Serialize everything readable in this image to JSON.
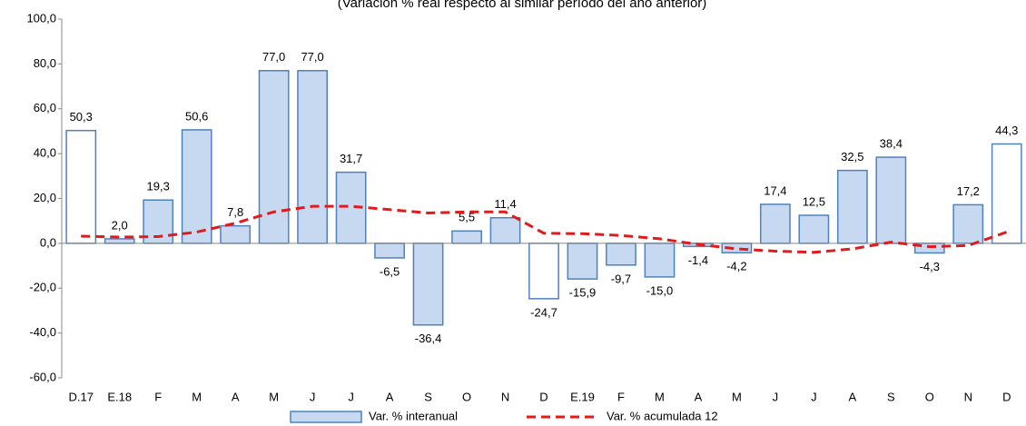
{
  "chart_data": {
    "type": "bar",
    "title": "(Variación % real respecto al similar período del año anterior)",
    "categories": [
      "D.17",
      "E.18",
      "F",
      "M",
      "A",
      "M",
      "J",
      "J",
      "A",
      "S",
      "O",
      "N",
      "D",
      "E.19",
      "F",
      "M",
      "A",
      "M",
      "J",
      "J",
      "A",
      "S",
      "O",
      "N",
      "D"
    ],
    "series": [
      {
        "name": "Var. % interanual",
        "color": "#c6d9f1",
        "border": "#4f81bd",
        "colors": [
          "#ffffff",
          "#c6d9f1",
          "#c6d9f1",
          "#c6d9f1",
          "#c6d9f1",
          "#c6d9f1",
          "#c6d9f1",
          "#c6d9f1",
          "#c6d9f1",
          "#c6d9f1",
          "#c6d9f1",
          "#c6d9f1",
          "#ffffff",
          "#c6d9f1",
          "#c6d9f1",
          "#c6d9f1",
          "#c6d9f1",
          "#c6d9f1",
          "#c6d9f1",
          "#c6d9f1",
          "#c6d9f1",
          "#c6d9f1",
          "#c6d9f1",
          "#c6d9f1",
          "#ffffff"
        ],
        "values": [
          50.3,
          2.0,
          19.3,
          50.6,
          7.8,
          77.0,
          77.0,
          31.7,
          -6.5,
          -36.4,
          5.5,
          11.4,
          -24.7,
          -15.9,
          -9.7,
          -15.0,
          -1.4,
          -4.2,
          17.4,
          12.5,
          32.5,
          38.4,
          -4.3,
          17.2,
          44.3
        ],
        "value_labels": [
          "50,3",
          "2,0",
          "19,3",
          "50,6",
          "7,8",
          "77,0",
          "77,0",
          "31,7",
          "-6,5",
          "-36,4",
          "5,5",
          "11,4",
          "-24,7",
          "-15,9",
          "-9,7",
          "-15,0",
          "-1,4",
          "-4,2",
          "17,4",
          "12,5",
          "32,5",
          "38,4",
          "-4,3",
          "17,2",
          "44,3"
        ]
      },
      {
        "name": "Var. % acumulada 12",
        "type": "line",
        "color": "#e31a1c",
        "dashed": true,
        "values": [
          3.2,
          2.8,
          3.0,
          5,
          9,
          14,
          16.5,
          16.5,
          15,
          13.5,
          14,
          14,
          4.5,
          4.3,
          3.5,
          2,
          -0.5,
          -2.5,
          -3.5,
          -4,
          -2.5,
          0.5,
          -1.5,
          -1,
          5
        ]
      }
    ],
    "ylim": [
      -60,
      100
    ],
    "yticks": [
      {
        "value": -60,
        "label": "-60,0"
      },
      {
        "value": -40,
        "label": "-40,0"
      },
      {
        "value": -20,
        "label": "-20,0"
      },
      {
        "value": 0,
        "label": "0,0"
      },
      {
        "value": 20,
        "label": "20,0"
      },
      {
        "value": 40,
        "label": "40,0"
      },
      {
        "value": 60,
        "label": "60,0"
      },
      {
        "value": 80,
        "label": "80,0"
      },
      {
        "value": 100,
        "label": "100,0"
      }
    ],
    "legend": "bottom"
  }
}
